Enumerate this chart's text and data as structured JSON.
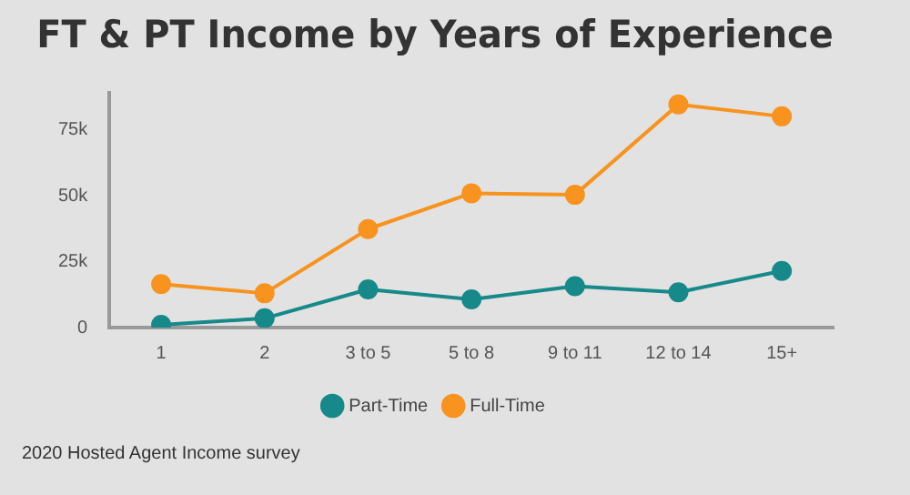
{
  "chart_data": {
    "type": "line",
    "title": "FT & PT Income by Years of Experience",
    "categories": [
      "1",
      "2",
      "3 to 5",
      "5 to 8",
      "9 to 11",
      "12 to 14",
      "15+"
    ],
    "series": [
      {
        "name": "Part-Time",
        "color": "#17898a",
        "values": [
          1000,
          3500,
          14500,
          10700,
          15700,
          13400,
          21500
        ]
      },
      {
        "name": "Full-Time",
        "color": "#f7931e",
        "values": [
          16500,
          13000,
          37400,
          51000,
          50400,
          84700,
          80200
        ]
      }
    ],
    "ylim": [
      0,
      89000
    ],
    "yticks": [
      0,
      {
        "value": 25000,
        "label": "25k"
      },
      {
        "value": 50000,
        "label": "50k"
      },
      {
        "value": 75000,
        "label": "75k"
      }
    ],
    "grid": false,
    "legend": "bottom",
    "marker": "circle",
    "line_style": "solid",
    "annotations": [
      "2020 Hosted Agent Income survey"
    ]
  }
}
